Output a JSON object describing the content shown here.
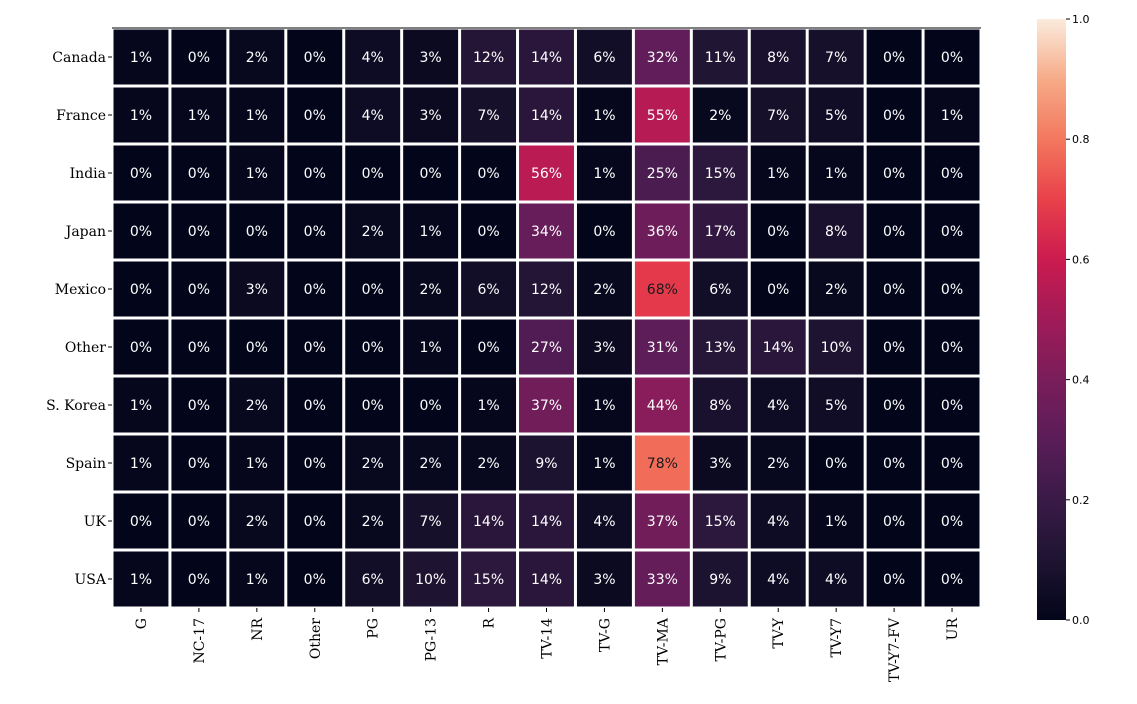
{
  "chart_data": {
    "type": "heatmap",
    "title": "",
    "xlabel": "",
    "ylabel": "",
    "rows": [
      "Canada",
      "France",
      "India",
      "Japan",
      "Mexico",
      "Other",
      "S. Korea",
      "Spain",
      "UK",
      "USA"
    ],
    "columns": [
      "G",
      "NC-17",
      "NR",
      "Other",
      "PG",
      "PG-13",
      "R",
      "TV-14",
      "TV-G",
      "TV-MA",
      "TV-PG",
      "TV-Y",
      "TV-Y7",
      "TV-Y7-FV",
      "UR"
    ],
    "values": [
      [
        0.01,
        0.0,
        0.02,
        0.0,
        0.04,
        0.03,
        0.12,
        0.14,
        0.06,
        0.32,
        0.11,
        0.08,
        0.07,
        0.0,
        0.0
      ],
      [
        0.01,
        0.01,
        0.01,
        0.0,
        0.04,
        0.03,
        0.07,
        0.14,
        0.01,
        0.55,
        0.02,
        0.07,
        0.05,
        0.0,
        0.01
      ],
      [
        0.0,
        0.0,
        0.01,
        0.0,
        0.0,
        0.0,
        0.0,
        0.56,
        0.01,
        0.25,
        0.15,
        0.01,
        0.01,
        0.0,
        0.0
      ],
      [
        0.0,
        0.0,
        0.0,
        0.0,
        0.02,
        0.01,
        0.0,
        0.34,
        0.0,
        0.36,
        0.17,
        0.0,
        0.08,
        0.0,
        0.0
      ],
      [
        0.0,
        0.0,
        0.03,
        0.0,
        0.0,
        0.02,
        0.06,
        0.12,
        0.02,
        0.68,
        0.06,
        0.0,
        0.02,
        0.0,
        0.0
      ],
      [
        0.0,
        0.0,
        0.0,
        0.0,
        0.0,
        0.01,
        0.0,
        0.27,
        0.03,
        0.31,
        0.13,
        0.14,
        0.1,
        0.0,
        0.0
      ],
      [
        0.01,
        0.0,
        0.02,
        0.0,
        0.0,
        0.0,
        0.01,
        0.37,
        0.01,
        0.44,
        0.08,
        0.04,
        0.05,
        0.0,
        0.0
      ],
      [
        0.01,
        0.0,
        0.01,
        0.0,
        0.02,
        0.02,
        0.02,
        0.09,
        0.01,
        0.78,
        0.03,
        0.02,
        0.0,
        0.0,
        0.0
      ],
      [
        0.0,
        0.0,
        0.02,
        0.0,
        0.02,
        0.07,
        0.14,
        0.14,
        0.04,
        0.37,
        0.15,
        0.04,
        0.01,
        0.0,
        0.0
      ],
      [
        0.01,
        0.0,
        0.01,
        0.0,
        0.06,
        0.1,
        0.15,
        0.14,
        0.03,
        0.33,
        0.09,
        0.04,
        0.04,
        0.0,
        0.0
      ]
    ],
    "annotations": [
      [
        "1%",
        "0%",
        "2%",
        "0%",
        "4%",
        "3%",
        "12%",
        "14%",
        "6%",
        "32%",
        "11%",
        "8%",
        "7%",
        "0%",
        "0%"
      ],
      [
        "1%",
        "1%",
        "1%",
        "0%",
        "4%",
        "3%",
        "7%",
        "14%",
        "1%",
        "55%",
        "2%",
        "7%",
        "5%",
        "0%",
        "1%"
      ],
      [
        "0%",
        "0%",
        "1%",
        "0%",
        "0%",
        "0%",
        "0%",
        "56%",
        "1%",
        "25%",
        "15%",
        "1%",
        "1%",
        "0%",
        "0%"
      ],
      [
        "0%",
        "0%",
        "0%",
        "0%",
        "2%",
        "1%",
        "0%",
        "34%",
        "0%",
        "36%",
        "17%",
        "0%",
        "8%",
        "0%",
        "0%"
      ],
      [
        "0%",
        "0%",
        "3%",
        "0%",
        "0%",
        "2%",
        "6%",
        "12%",
        "2%",
        "68%",
        "6%",
        "0%",
        "2%",
        "0%",
        "0%"
      ],
      [
        "0%",
        "0%",
        "0%",
        "0%",
        "0%",
        "1%",
        "0%",
        "27%",
        "3%",
        "31%",
        "13%",
        "14%",
        "10%",
        "0%",
        "0%"
      ],
      [
        "1%",
        "0%",
        "2%",
        "0%",
        "0%",
        "0%",
        "1%",
        "37%",
        "1%",
        "44%",
        "8%",
        "4%",
        "5%",
        "0%",
        "0%"
      ],
      [
        "1%",
        "0%",
        "1%",
        "0%",
        "2%",
        "2%",
        "2%",
        "9%",
        "1%",
        "78%",
        "3%",
        "2%",
        "0%",
        "0%",
        "0%"
      ],
      [
        "0%",
        "0%",
        "2%",
        "0%",
        "2%",
        "7%",
        "14%",
        "14%",
        "4%",
        "37%",
        "15%",
        "4%",
        "1%",
        "0%",
        "0%"
      ],
      [
        "1%",
        "0%",
        "1%",
        "0%",
        "6%",
        "10%",
        "15%",
        "14%",
        "3%",
        "33%",
        "9%",
        "4%",
        "4%",
        "0%",
        "0%"
      ]
    ],
    "colormap": "rocket",
    "vmin": 0.0,
    "vmax": 1.0,
    "colorbar_ticks": [
      "0.0",
      "0.2",
      "0.4",
      "0.6",
      "0.8",
      "1.0"
    ],
    "colorbar_tick_values": [
      0.0,
      0.2,
      0.4,
      0.6,
      0.8,
      1.0
    ],
    "cell_separator_color": "#ffffff",
    "grid": false
  }
}
